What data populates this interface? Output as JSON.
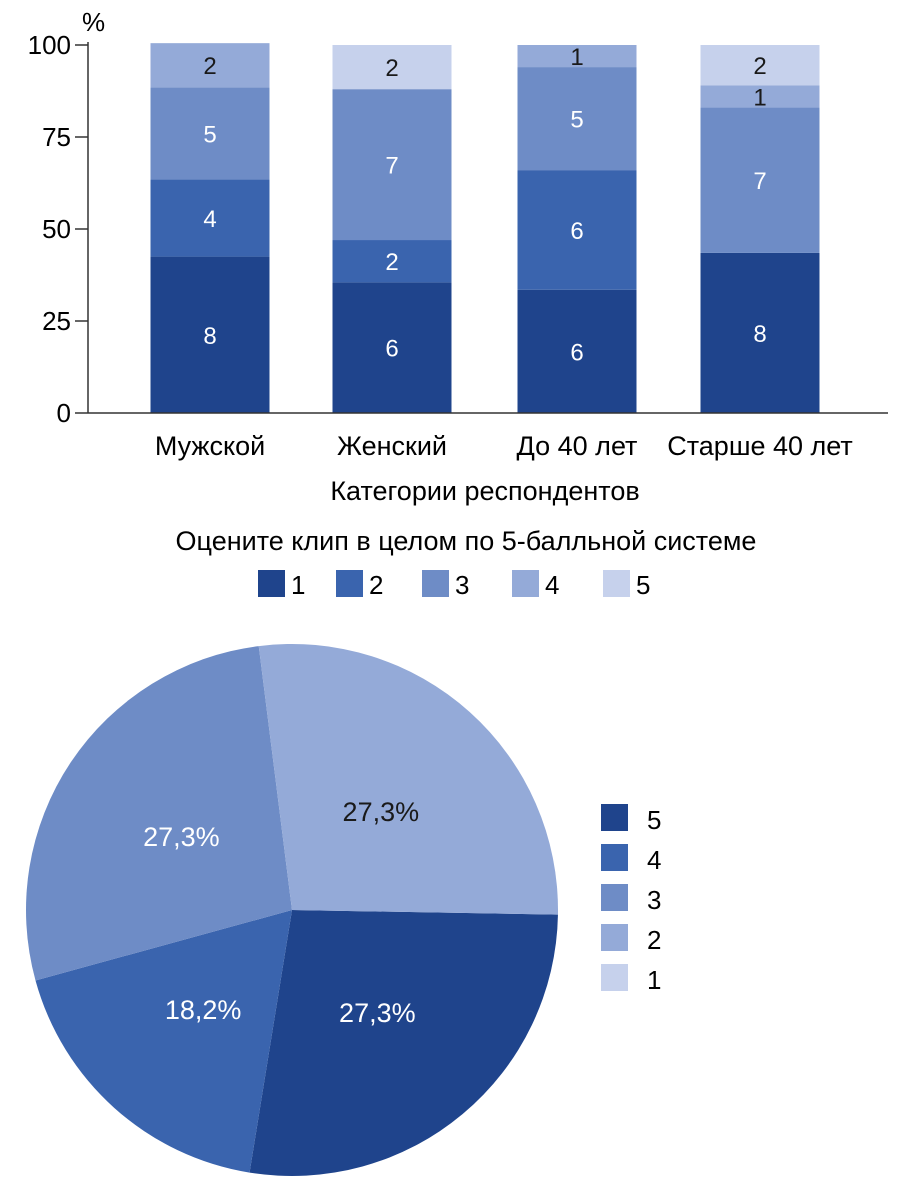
{
  "chart_data": [
    {
      "type": "bar",
      "stacked": true,
      "title": "",
      "unit_label": "%",
      "xlabel": "Категории респондентов",
      "ylabel": "",
      "ylim": [
        0,
        100
      ],
      "yticks": [
        "0",
        "25",
        "50",
        "75",
        "100"
      ],
      "grid": false,
      "categories": [
        "Мужской",
        "Женский",
        "До 40 лет",
        "Старше 40 лет"
      ],
      "legend_title": "Оцените клип в целом по 5-балльной системе",
      "legend_position": "bottom",
      "series": [
        {
          "name": "1",
          "color": "#1f448c",
          "values": [
            42.5,
            35.5,
            33.5,
            43.5
          ],
          "labels": [
            "8",
            "6",
            "6",
            "8"
          ]
        },
        {
          "name": "2",
          "color": "#3a64ae",
          "values": [
            21.0,
            11.5,
            32.5,
            0
          ],
          "labels": [
            "4",
            "2",
            "6",
            ""
          ]
        },
        {
          "name": "3",
          "color": "#6e8cc6",
          "values": [
            25.0,
            41.0,
            28.0,
            39.5
          ],
          "labels": [
            "5",
            "7",
            "5",
            "7"
          ]
        },
        {
          "name": "4",
          "color": "#94aad8",
          "values": [
            12.0,
            0,
            6.0,
            6.0
          ],
          "labels": [
            "2",
            "",
            "1",
            "1"
          ]
        },
        {
          "name": "5",
          "color": "#c6d1ec",
          "values": [
            0,
            12.0,
            0,
            11.0
          ],
          "labels": [
            "",
            "2",
            "",
            "2"
          ]
        }
      ]
    },
    {
      "type": "pie",
      "title": "",
      "legend_position": "right",
      "slices": [
        {
          "name": "5",
          "value": 27.3,
          "label": "27,3%",
          "color": "#1f448c"
        },
        {
          "name": "4",
          "value": 18.2,
          "label": "18,2%",
          "color": "#3a64ae"
        },
        {
          "name": "3",
          "value": 27.3,
          "label": "27,3%",
          "color": "#6e8cc6"
        },
        {
          "name": "2",
          "value": 27.3,
          "label": "27,3%",
          "color": "#94aad8"
        },
        {
          "name": "1",
          "value": 0,
          "label": "",
          "color": "#c6d1ec"
        }
      ],
      "label_colors": {
        "dark": "#ffffff",
        "light": "#1a1a1a"
      }
    }
  ]
}
